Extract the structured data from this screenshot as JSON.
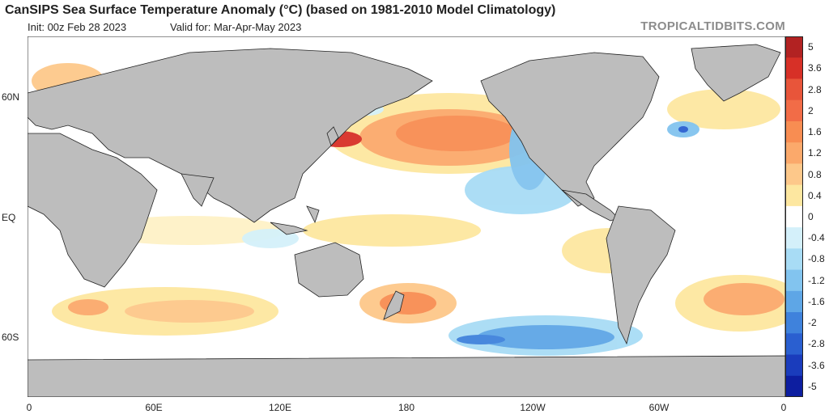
{
  "header": {
    "title": "CanSIPS Sea Surface Temperature Anomaly (°C) (based on 1981-2010 Model Climatology)",
    "init": "Init: 00z Feb 28 2023",
    "valid": "Valid for: Mar-Apr-May 2023",
    "source": "TROPICALTIDBITS.COM"
  },
  "axes": {
    "lat_labels": [
      "60N",
      "EQ",
      "60S"
    ],
    "lon_labels": [
      "0",
      "60E",
      "120E",
      "180",
      "120W",
      "60W",
      "0"
    ]
  },
  "colorbar": {
    "labels": [
      "5",
      "3.6",
      "2.8",
      "2",
      "1.6",
      "1.2",
      "0.8",
      "0.4",
      "0",
      "-0.4",
      "-0.8",
      "-1.2",
      "-1.6",
      "-2",
      "-2.8",
      "-3.6",
      "-5"
    ],
    "colors": [
      "#b22222",
      "#d73027",
      "#e8553a",
      "#f26c47",
      "#f88d52",
      "#fba96b",
      "#fdc88a",
      "#fde7a0",
      "#ffffff",
      "#d4f0fa",
      "#a8dcf5",
      "#82c4ef",
      "#5ea6e6",
      "#3f82dc",
      "#2a5fd0",
      "#1a3cbc",
      "#0d1ea0"
    ]
  },
  "map": {
    "land_color": "#bdbdbd",
    "ocean_color": "#ffffff"
  }
}
